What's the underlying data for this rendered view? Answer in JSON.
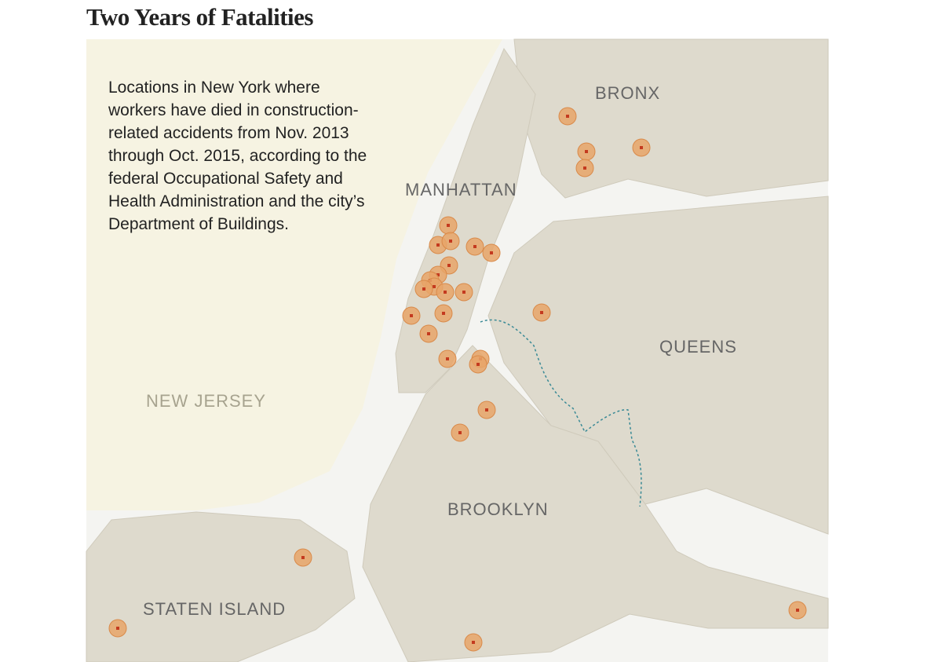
{
  "header": {
    "title": "Two Years of Fatalities"
  },
  "description": "Locations in New York where workers have died in construction-related accidents from Nov. 2013 through Oct. 2015, according to the federal Occupational Safety and Health Administration and the city’s Department of Buildings.",
  "map": {
    "labels": {
      "bronx": "BRONX",
      "manhattan": "MANHATTAN",
      "queens": "QUEENS",
      "new_jersey": "NEW JERSEY",
      "brooklyn": "BROOKLYN",
      "staten_island": "STATEN ISLAND"
    }
  }
}
